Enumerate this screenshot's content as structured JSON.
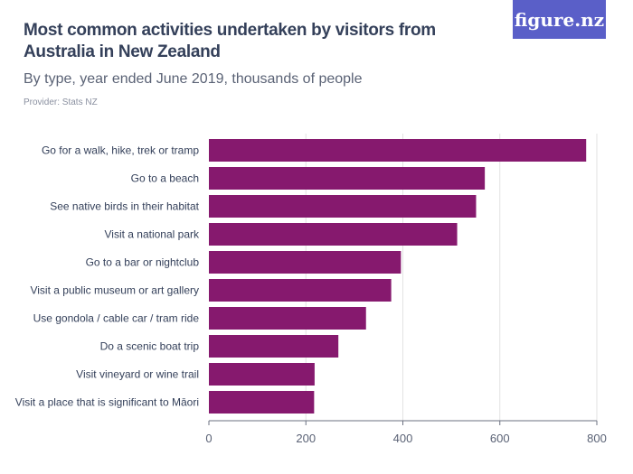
{
  "header": {
    "title": "Most common activities undertaken by visitors from Australia in New Zealand",
    "subtitle": "By type, year ended June 2019, thousands of people",
    "provider": "Provider: Stats NZ",
    "logo": "figure.nz"
  },
  "chart_data": {
    "type": "bar",
    "orientation": "horizontal",
    "title": "Most common activities undertaken by visitors from Australia in New Zealand",
    "subtitle": "By type, year ended June 2019, thousands of people",
    "categories": [
      "Go for a walk, hike, trek or tramp",
      "Go to a beach",
      "See native birds in their habitat",
      "Visit a national park",
      "Go to a bar or nightclub",
      "Visit a public museum or art gallery",
      "Use gondola / cable car / tram ride",
      "Do a scenic boat trip",
      "Visit vineyard or wine trail",
      "Visit a place that is significant to Māori"
    ],
    "values": [
      778,
      569,
      551,
      512,
      396,
      376,
      324,
      267,
      218,
      217
    ],
    "xlim": [
      0,
      800
    ],
    "xticks": [
      0,
      200,
      400,
      600,
      800
    ],
    "grid": true,
    "color": "#86196e"
  }
}
